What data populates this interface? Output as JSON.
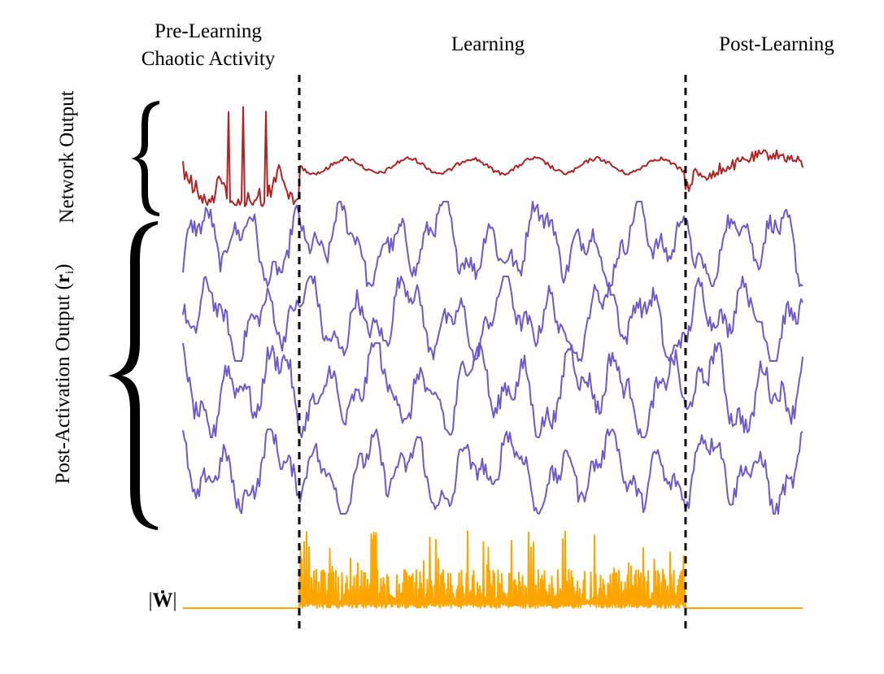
{
  "phases": {
    "pre_learning": {
      "line1": "Pre-Learning",
      "line2": "Chaotic Activity"
    },
    "learning": "Learning",
    "post_learning": "Post-Learning"
  },
  "labels": {
    "network_output": "Network Output",
    "post_activation_prefix": "Post-Activation Output (",
    "post_activation_var": "r",
    "post_activation_sub": "i",
    "post_activation_suffix": ")",
    "weight_change_left": "|",
    "weight_change_var": "W",
    "weight_change_right": "|"
  },
  "colors": {
    "network_output": "#b22222",
    "neuron_traces": "#6a5acd",
    "weight_change": "#ffa500",
    "divider": "#000000"
  },
  "neuron_trace_count": 4
}
